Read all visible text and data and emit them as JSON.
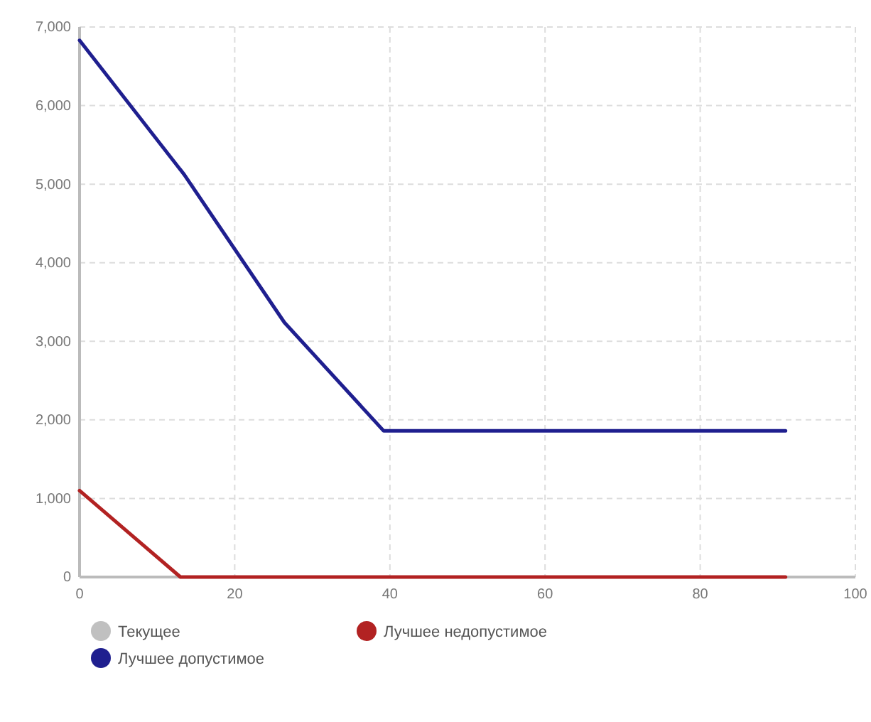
{
  "chart_data": {
    "type": "line",
    "xlim": [
      0,
      100
    ],
    "xticks": [
      0,
      20,
      40,
      60,
      80,
      100
    ],
    "ylim": [
      0,
      7000
    ],
    "yticks": [
      0,
      {
        "value": 1000,
        "label": "1,000"
      },
      {
        "value": 2000,
        "label": "2,000"
      },
      {
        "value": 3000,
        "label": "3,000"
      },
      {
        "value": 4000,
        "label": "4,000"
      },
      {
        "value": 5000,
        "label": "5,000"
      },
      {
        "value": 6000,
        "label": "6,000"
      },
      {
        "value": 7000,
        "label": "7,000"
      }
    ],
    "grid": true,
    "legend": "bottom",
    "marker": "none",
    "line_style": "solid",
    "series": [
      {
        "name": "Текущее",
        "color": "#c0c0c0"
      },
      {
        "name": "Лучшее недопустимое",
        "color": "#b22222",
        "x": [
          0,
          13,
          91
        ],
        "values": [
          1100,
          0,
          0
        ]
      },
      {
        "name": "Лучшее допустимое",
        "color": "#1f1f8f",
        "x": [
          0,
          13.5,
          26.4,
          39.2,
          91
        ],
        "values": [
          6830,
          5120,
          3240,
          1860,
          1860
        ]
      }
    ]
  }
}
